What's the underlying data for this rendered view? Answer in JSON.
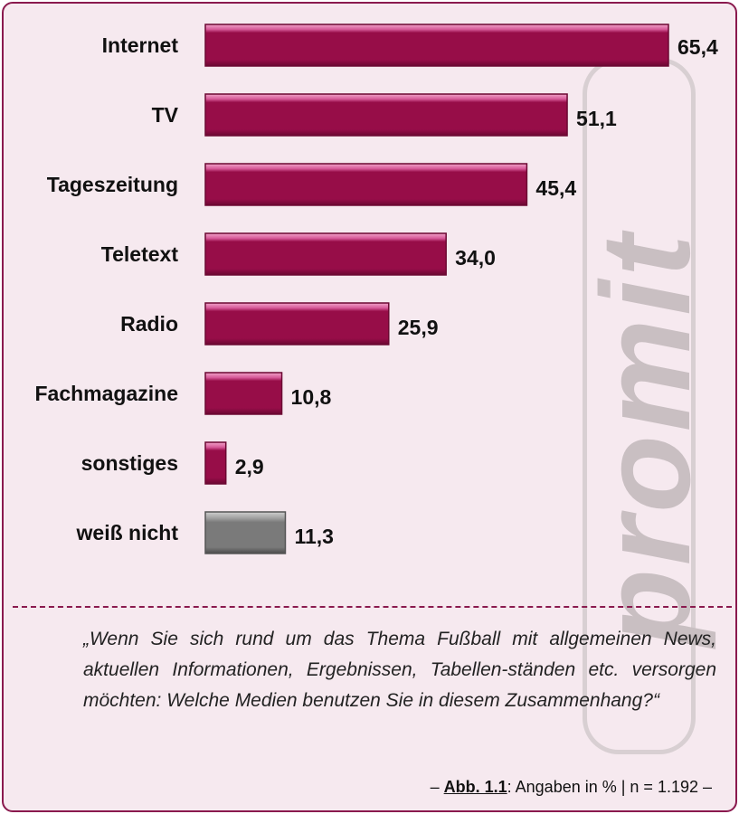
{
  "watermark": "promit",
  "colors": {
    "primary_bar": "#970d48",
    "other_bar": "#7a7a7a",
    "background": "#f6e9ef",
    "frame": "#8a1a4e"
  },
  "chart_data": {
    "type": "bar",
    "orientation": "horizontal",
    "categories": [
      "Internet",
      "TV",
      "Tageszeitung",
      "Teletext",
      "Radio",
      "Fachmagazine",
      "sonstiges",
      "weiß nicht"
    ],
    "values": [
      65.4,
      51.1,
      45.4,
      34.0,
      25.9,
      10.8,
      2.9,
      11.3
    ],
    "value_labels": [
      "65,4",
      "51,1",
      "45,4",
      "34,0",
      "25,9",
      "10,8",
      "2,9",
      "11,3"
    ],
    "bar_colors": [
      "#970d48",
      "#970d48",
      "#970d48",
      "#970d48",
      "#970d48",
      "#970d48",
      "#970d48",
      "#7a7a7a"
    ],
    "xlim": [
      0,
      70
    ],
    "grid": false,
    "axes_visible": false
  },
  "question": "„Wenn Sie sich rund um das Thema Fußball mit allgemeinen News, aktuellen Informationen, Ergebnissen, Tabellen-ständen etc. versorgen möchten: Welche Medien benutzen Sie in diesem Zusammenhang?“",
  "source": {
    "prefix": "– ",
    "figure": "Abb. 1.1",
    "text": ": Angaben in % | n = 1.192 –"
  }
}
